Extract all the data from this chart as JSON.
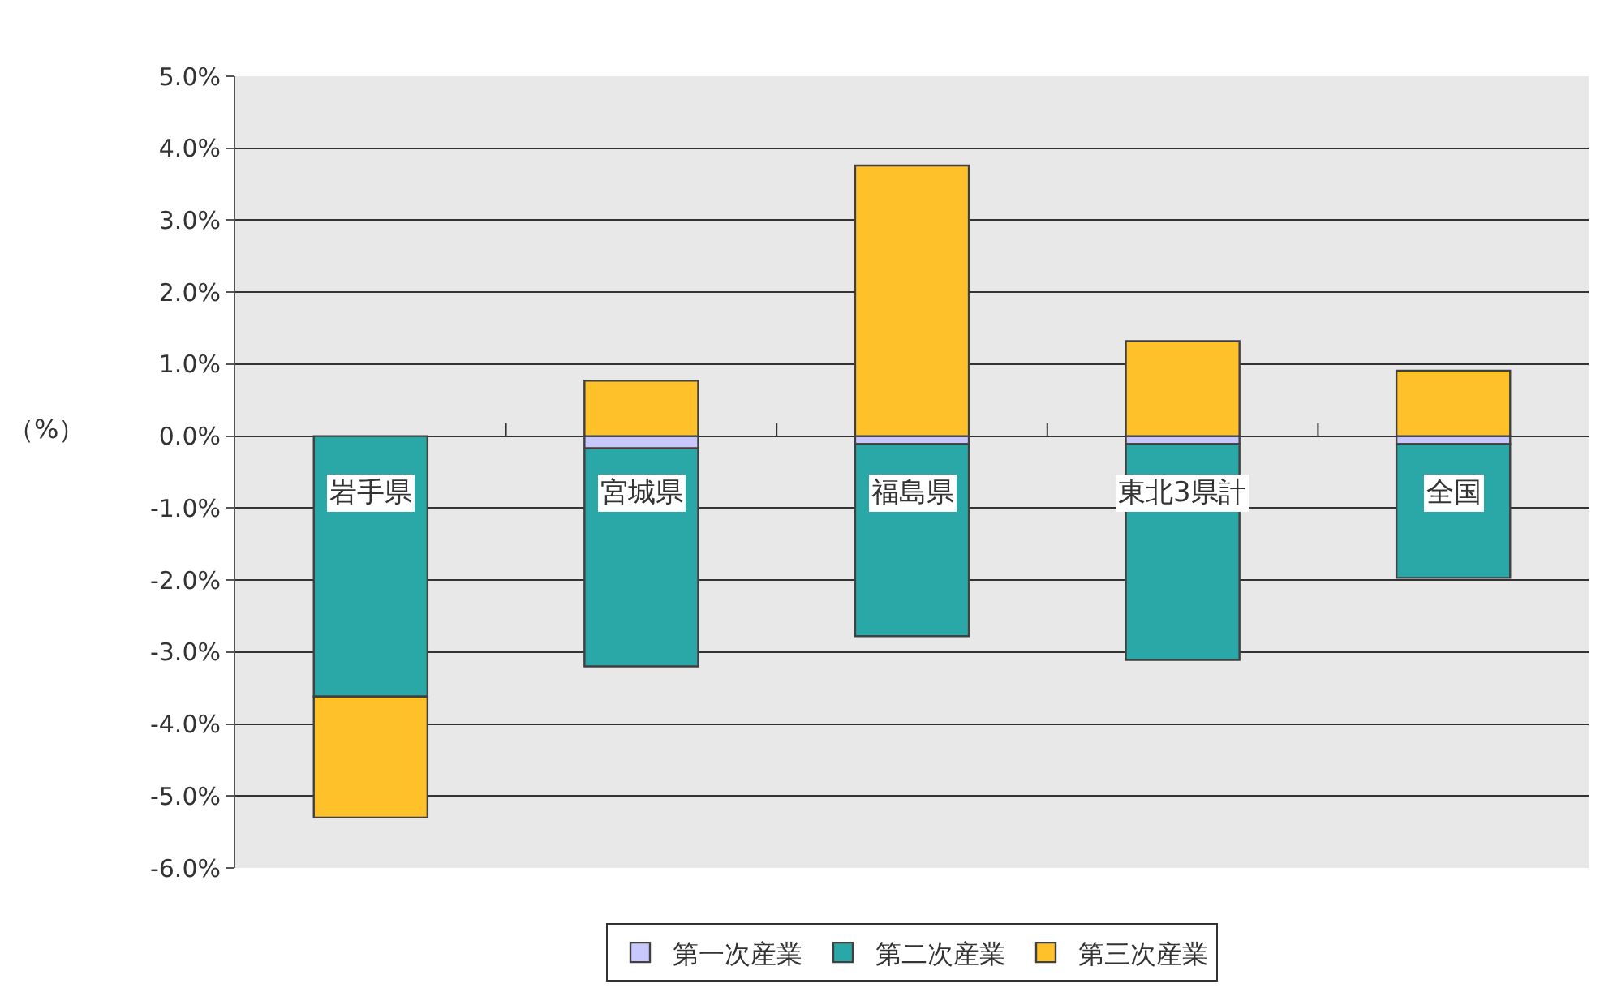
{
  "chart_data": {
    "type": "bar",
    "stacked": true,
    "ylabel": "（%）",
    "categories": [
      "岩手県",
      "宮城県",
      "福島県",
      "東北3県計",
      "全国"
    ],
    "series": [
      {
        "name": "第一次産業",
        "color": "#c8c8ff",
        "values": [
          null,
          -0.17,
          -0.11,
          -0.11,
          -0.11
        ]
      },
      {
        "name": "第二次産業",
        "color": "#2aa8a8",
        "values": [
          -3.62,
          -3.03,
          -2.67,
          -3.0,
          -1.86
        ]
      },
      {
        "name": "第三次産業",
        "color": "#ffc12a",
        "values": [
          -1.68,
          0.77,
          3.76,
          1.32,
          0.91
        ]
      }
    ],
    "ylim": [
      -6,
      5
    ],
    "yticks": [
      {
        "value": -6,
        "label": "-6.0%"
      },
      {
        "value": -5,
        "label": "-5.0%"
      },
      {
        "value": -4,
        "label": "-4.0%"
      },
      {
        "value": -3,
        "label": "-3.0%"
      },
      {
        "value": -2,
        "label": "-2.0%"
      },
      {
        "value": -1,
        "label": "-1.0%"
      },
      {
        "value": 0,
        "label": "0.0%"
      },
      {
        "value": 1,
        "label": "1.0%"
      },
      {
        "value": 2,
        "label": "2.0%"
      },
      {
        "value": 3,
        "label": "3.0%"
      },
      {
        "value": 4,
        "label": "4.0%"
      },
      {
        "value": 5,
        "label": "5.0%"
      }
    ],
    "grid": "y",
    "legend": "bottom"
  }
}
